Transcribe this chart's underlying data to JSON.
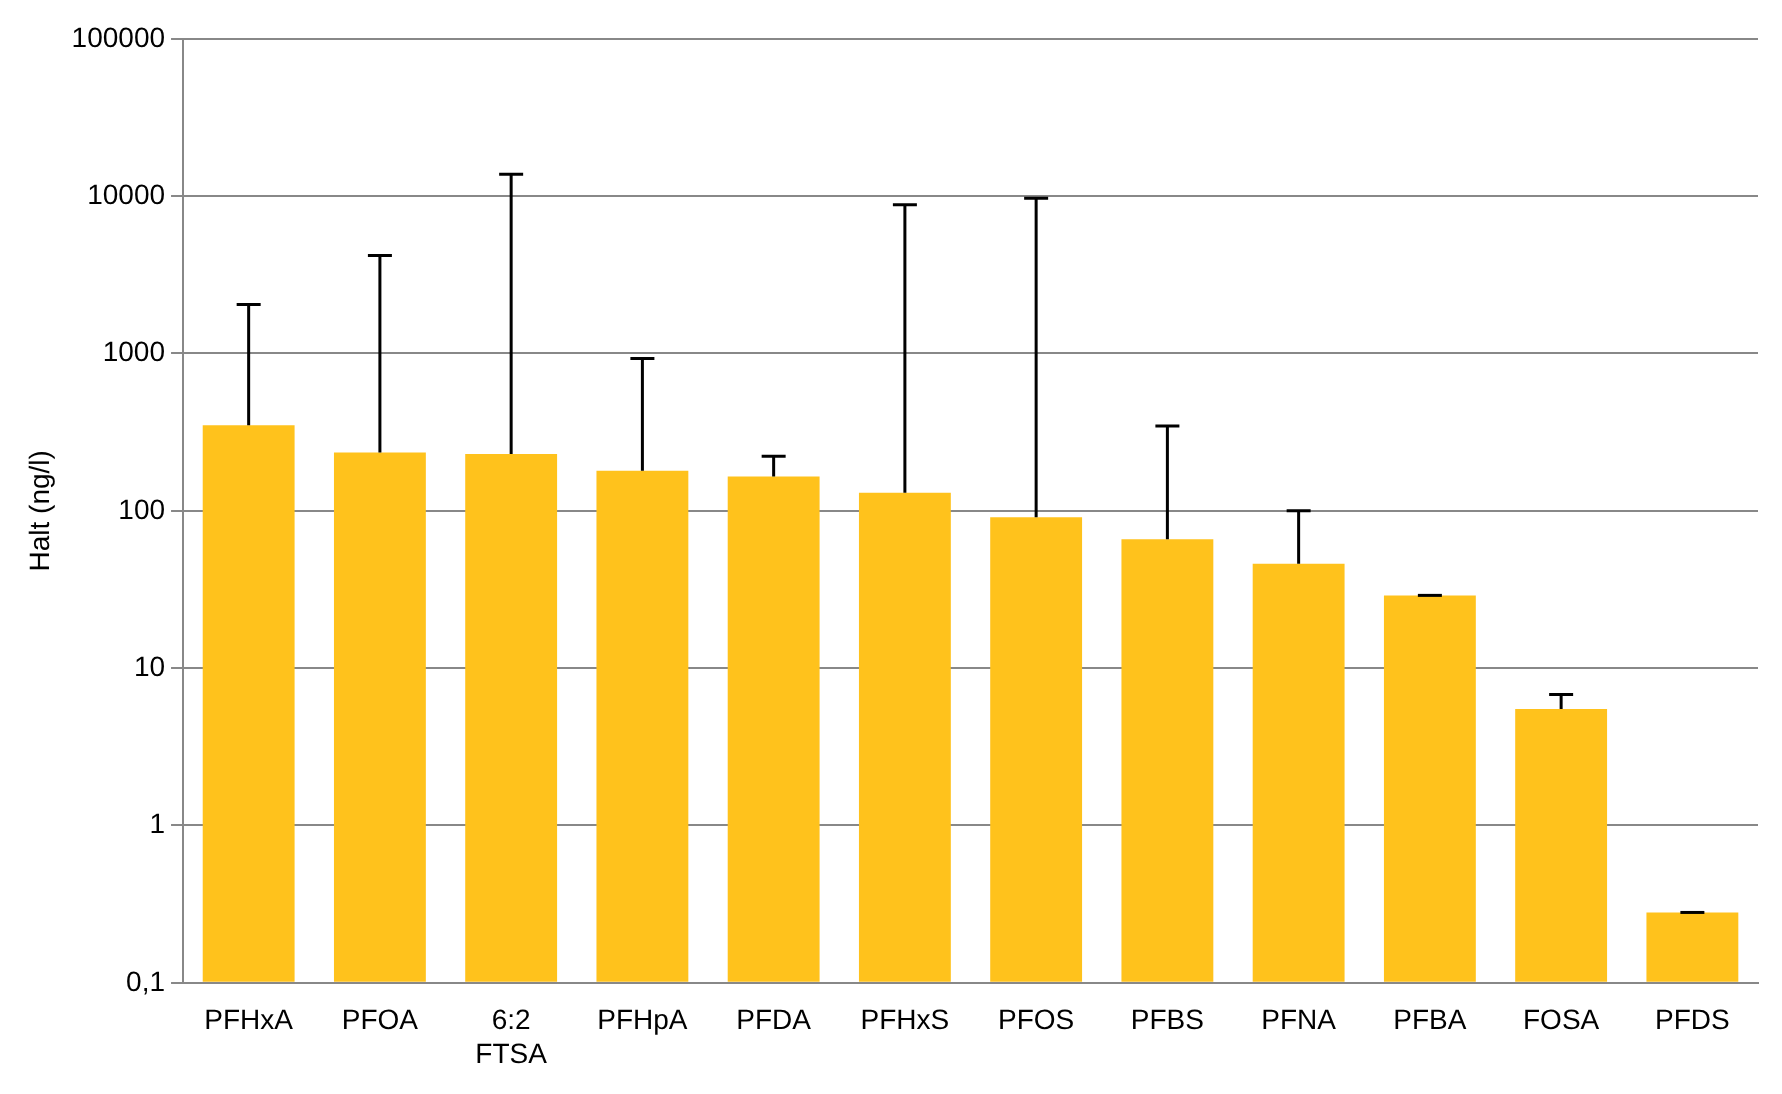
{
  "chart_data": {
    "type": "bar",
    "ylabel": "Halt (ng/l)",
    "categories": [
      "PFHxA",
      "PFOA",
      "6:2 FTSA",
      "PFHpA",
      "PFDA",
      "PFHxS",
      "PFOS",
      "PFBS",
      "PFNA",
      "PFBA",
      "FOSA",
      "PFDS"
    ],
    "values": [
      350,
      235,
      230,
      180,
      165,
      130,
      91,
      66,
      46,
      29,
      5.5,
      0.28
    ],
    "errors": [
      [
        350,
        2050
      ],
      [
        235,
        4200
      ],
      [
        230,
        13800
      ],
      [
        180,
        930
      ],
      [
        165,
        222
      ],
      [
        130,
        8800
      ],
      [
        91,
        9700
      ],
      [
        66,
        346
      ],
      [
        46,
        100
      ],
      [
        29,
        29
      ],
      [
        5.5,
        6.8
      ],
      [
        0.28,
        0.28
      ]
    ],
    "color": "#ffc21c",
    "log": "y",
    "ylim": [
      0.1,
      100000
    ],
    "yticks": [
      {
        "value": 0.1,
        "label": "0,1"
      },
      1,
      10,
      100,
      1000,
      10000,
      100000
    ],
    "grid": "y"
  }
}
